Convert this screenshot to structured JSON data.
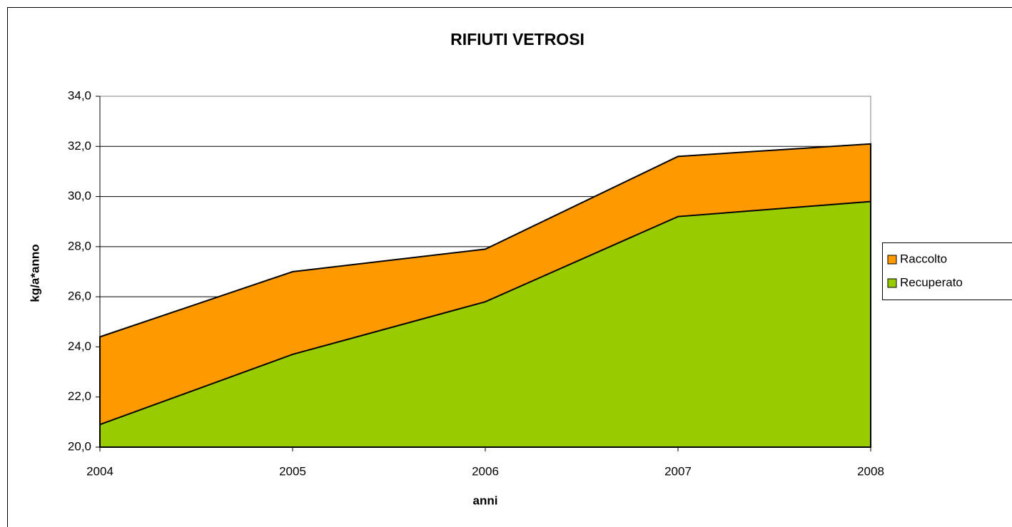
{
  "chart_data": {
    "type": "area",
    "title": "RIFIUTI VETROSI",
    "x_label": "anni",
    "y_label": "kg/a*anno",
    "categories": [
      "2004",
      "2005",
      "2006",
      "2007",
      "2008"
    ],
    "series": [
      {
        "name": "Raccolto",
        "color": "#ff9900",
        "values": [
          24.4,
          27.0,
          27.9,
          31.6,
          32.1
        ]
      },
      {
        "name": "Recuperato",
        "color": "#99cc00",
        "values": [
          20.9,
          23.7,
          25.8,
          29.2,
          29.8
        ]
      }
    ],
    "ylim": [
      20,
      34
    ],
    "yticks": [
      {
        "value": 20,
        "label": "20,0"
      },
      {
        "value": 22,
        "label": "22,0"
      },
      {
        "value": 24,
        "label": "24,0"
      },
      {
        "value": 26,
        "label": "26,0"
      },
      {
        "value": 28,
        "label": "28,0"
      },
      {
        "value": 30,
        "label": "30,0"
      },
      {
        "value": 32,
        "label": "32,0"
      },
      {
        "value": 34,
        "label": "34,0"
      }
    ],
    "grid": true,
    "legend": "right"
  }
}
